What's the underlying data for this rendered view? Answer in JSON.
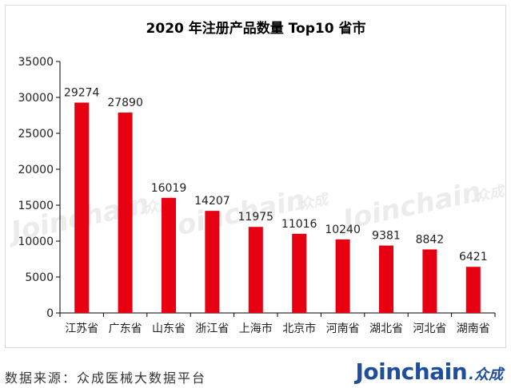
{
  "chart_data": {
    "type": "bar",
    "title": "2020 年注册产品数量 Top10 省市",
    "categories": [
      "江苏省",
      "广东省",
      "山东省",
      "浙江省",
      "上海市",
      "北京市",
      "河南省",
      "湖北省",
      "河北省",
      "湖南省"
    ],
    "values": [
      29274,
      27890,
      16019,
      14207,
      11975,
      11016,
      10240,
      9381,
      8842,
      6421
    ],
    "data_labels": [
      "29274",
      "27890",
      "16019",
      "14207",
      "11975",
      "11016",
      "10240",
      "9381",
      "8842",
      "6421"
    ],
    "yticks": [
      0,
      5000,
      10000,
      15000,
      20000,
      25000,
      30000,
      35000
    ],
    "ytick_labels": [
      "0",
      "5000",
      "10000",
      "15000",
      "20000",
      "25000",
      "30000",
      "35000"
    ],
    "ylim": [
      0,
      35000
    ],
    "xlabel": "",
    "ylabel": "",
    "grid": false,
    "legend": "none",
    "bar_color": "#e60012"
  },
  "watermark": {
    "text": "Joinchain",
    "suffix": ".众成"
  },
  "footer": {
    "source": "数据来源：众成医械大数据平台",
    "logo_text": "Joinchain",
    "logo_suffix": ".众成",
    "logo_color": "#1f4e9c"
  }
}
